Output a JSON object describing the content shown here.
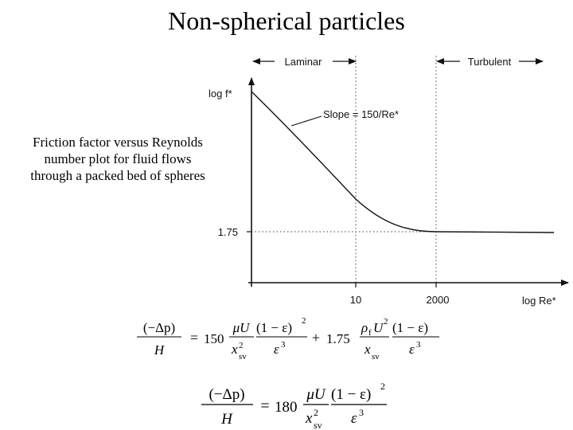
{
  "page": {
    "title": "Non-spherical particles",
    "caption_lines": [
      "Friction factor versus Reynolds",
      "number plot for fluid flows",
      "through a packed bed of spheres"
    ]
  },
  "chart_data": {
    "type": "line",
    "xlabel": "log Re*",
    "ylabel": "log f*",
    "scale": "log-log",
    "x_ticks": [
      "10",
      "2000"
    ],
    "y_ticks": [
      "1.75"
    ],
    "regions": [
      {
        "label": "Laminar",
        "to": "10"
      },
      {
        "label": "Turbulent",
        "from": "2000"
      }
    ],
    "annotation": "Slope = 150/Re*",
    "series": [
      {
        "x": [
          0.1,
          1,
          10,
          100,
          2000,
          100000
        ],
        "y": [
          1500,
          151.75,
          16.75,
          3.25,
          1.83,
          1.75
        ]
      }
    ]
  },
  "equations": {
    "eq1": {
      "lhs_num": "(−Δp)",
      "lhs_den": "H",
      "eq": "=",
      "c1": "150",
      "t1_num": "μU",
      "t1_den": "x",
      "t1_den_sup": "2",
      "t1_den_sub": "sv",
      "t2_num": "(1 − ε)",
      "t2_num_sup": "2",
      "t2_den": "ε",
      "t2_den_sup": "3",
      "plus": "+",
      "c2": "1.75",
      "t3_num": "ρ",
      "t3_num_sub": "f",
      "t3_num2": "U",
      "t3_num2_sup": "2",
      "t3_den": "x",
      "t3_den_sub": "sv",
      "t4_num": "(1 − ε)",
      "t4_den": "ε",
      "t4_den_sup": "3"
    },
    "eq2": {
      "lhs_num": "(−Δp)",
      "lhs_den": "H",
      "eq": "=",
      "c1": "180",
      "t1_num": "μU",
      "t1_den": "x",
      "t1_den_sup": "2",
      "t1_den_sub": "sv",
      "t2_num": "(1 − ε)",
      "t2_num_sup": "2",
      "t2_den": "ε",
      "t2_den_sup": "3"
    }
  }
}
